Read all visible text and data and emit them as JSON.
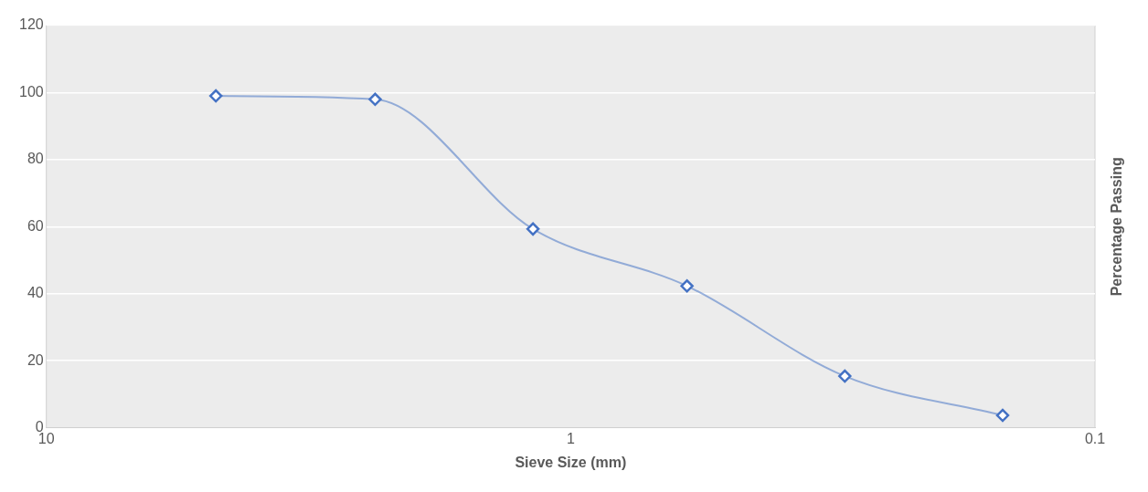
{
  "chart_data": {
    "type": "line",
    "xlabel": "Sieve Size (mm)",
    "ylabel": "Percentage Passing",
    "x": [
      4.75,
      2.36,
      1.18,
      0.6,
      0.3,
      0.15
    ],
    "series": [
      {
        "color": "#4472c4",
        "values": [
          99,
          98,
          59.3,
          42.3,
          15.4,
          3.7
        ]
      }
    ],
    "log": "x",
    "xlim": [
      10,
      0.1
    ],
    "xticks": [
      10,
      1,
      0.1
    ],
    "ylim": [
      0,
      120
    ],
    "yticks": [
      0,
      20,
      40,
      60,
      80,
      100,
      120
    ],
    "grid": "y",
    "legend": false,
    "marker": "diamond",
    "line_style": "solid"
  }
}
